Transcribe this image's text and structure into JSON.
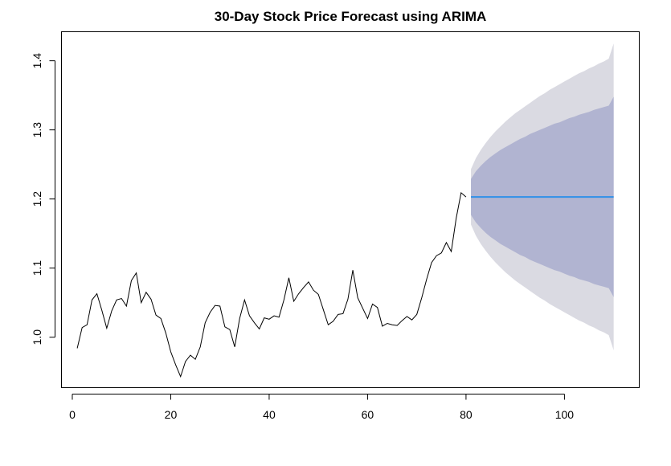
{
  "chart_data": {
    "type": "line",
    "title": "30-Day Stock Price Forecast using ARIMA",
    "xlabel": "",
    "ylabel": "",
    "xlim": [
      -2.2,
      115.2
    ],
    "ylim": [
      0.927,
      1.442
    ],
    "x_ticks": [
      0,
      20,
      40,
      60,
      80,
      100
    ],
    "y_ticks": [
      1.0,
      1.1,
      1.2,
      1.3,
      1.4
    ],
    "x_tick_labels": [
      "0",
      "20",
      "40",
      "60",
      "80",
      "100"
    ],
    "y_tick_labels": [
      "1.0",
      "1.1",
      "1.2",
      "1.3",
      "1.4"
    ],
    "grid": false,
    "colors": {
      "history": "#000000",
      "forecast": "#2f8fe8",
      "band_80": "#b1b4d1",
      "band_95": "#dadae2"
    },
    "series": [
      {
        "x": [
          1,
          2,
          3,
          4,
          5,
          6,
          7,
          8,
          9,
          10,
          11,
          12,
          13,
          14,
          15,
          16,
          17,
          18,
          19,
          20,
          21,
          22,
          23,
          24,
          25,
          26,
          27,
          28,
          29,
          30,
          31,
          32,
          33,
          34,
          35,
          36,
          37,
          38,
          39,
          40,
          41,
          42,
          43,
          44,
          45,
          46,
          47,
          48,
          49,
          50,
          51,
          52,
          53,
          54,
          55,
          56,
          57,
          58,
          59,
          60,
          61,
          62,
          63,
          64,
          65,
          66,
          67,
          68,
          69,
          70,
          71,
          72,
          73,
          74,
          75,
          76,
          77,
          78,
          79,
          80
        ],
        "values": [
          0.984,
          1.014,
          1.018,
          1.054,
          1.063,
          1.039,
          1.013,
          1.038,
          1.054,
          1.056,
          1.045,
          1.082,
          1.093,
          1.05,
          1.065,
          1.055,
          1.032,
          1.027,
          1.006,
          0.979,
          0.96,
          0.943,
          0.965,
          0.974,
          0.968,
          0.986,
          1.021,
          1.036,
          1.046,
          1.045,
          1.015,
          1.011,
          0.986,
          1.027,
          1.054,
          1.031,
          1.021,
          1.012,
          1.028,
          1.026,
          1.031,
          1.029,
          1.054,
          1.086,
          1.052,
          1.063,
          1.072,
          1.08,
          1.068,
          1.062,
          1.04,
          1.018,
          1.023,
          1.033,
          1.034,
          1.055,
          1.097,
          1.057,
          1.042,
          1.027,
          1.048,
          1.043,
          1.016,
          1.02,
          1.018,
          1.017,
          1.024,
          1.03,
          1.025,
          1.033,
          1.057,
          1.084,
          1.108,
          1.118,
          1.122,
          1.137,
          1.124,
          1.172,
          1.209,
          1.203
        ]
      },
      {
        "x": [
          81,
          110
        ],
        "values": [
          1.203,
          1.203
        ]
      }
    ],
    "intervals": [
      {
        "x": [
          81,
          82,
          83,
          84,
          85,
          86,
          87,
          88,
          89,
          90,
          91,
          92,
          93,
          94,
          95,
          96,
          97,
          98,
          99,
          100,
          101,
          102,
          103,
          104,
          105,
          106,
          107,
          108,
          109,
          110
        ],
        "lo_80": [
          1.177,
          1.166,
          1.158,
          1.151,
          1.145,
          1.14,
          1.135,
          1.131,
          1.127,
          1.123,
          1.119,
          1.116,
          1.112,
          1.109,
          1.106,
          1.103,
          1.1,
          1.097,
          1.095,
          1.092,
          1.089,
          1.087,
          1.084,
          1.082,
          1.08,
          1.077,
          1.075,
          1.073,
          1.071,
          1.058
        ],
        "hi_80": [
          1.229,
          1.24,
          1.248,
          1.255,
          1.261,
          1.266,
          1.271,
          1.275,
          1.279,
          1.283,
          1.287,
          1.29,
          1.294,
          1.297,
          1.3,
          1.303,
          1.306,
          1.309,
          1.311,
          1.314,
          1.317,
          1.319,
          1.322,
          1.324,
          1.326,
          1.329,
          1.331,
          1.333,
          1.335,
          1.348
        ],
        "lo_95": [
          1.163,
          1.147,
          1.135,
          1.125,
          1.116,
          1.108,
          1.101,
          1.094,
          1.088,
          1.082,
          1.077,
          1.072,
          1.067,
          1.062,
          1.057,
          1.053,
          1.048,
          1.044,
          1.04,
          1.036,
          1.032,
          1.028,
          1.024,
          1.021,
          1.017,
          1.014,
          1.01,
          1.007,
          1.003,
          0.981
        ],
        "hi_95": [
          1.243,
          1.259,
          1.271,
          1.281,
          1.29,
          1.298,
          1.305,
          1.312,
          1.318,
          1.324,
          1.329,
          1.334,
          1.339,
          1.344,
          1.349,
          1.353,
          1.358,
          1.362,
          1.366,
          1.37,
          1.374,
          1.378,
          1.382,
          1.385,
          1.389,
          1.392,
          1.396,
          1.399,
          1.403,
          1.425
        ]
      }
    ]
  }
}
